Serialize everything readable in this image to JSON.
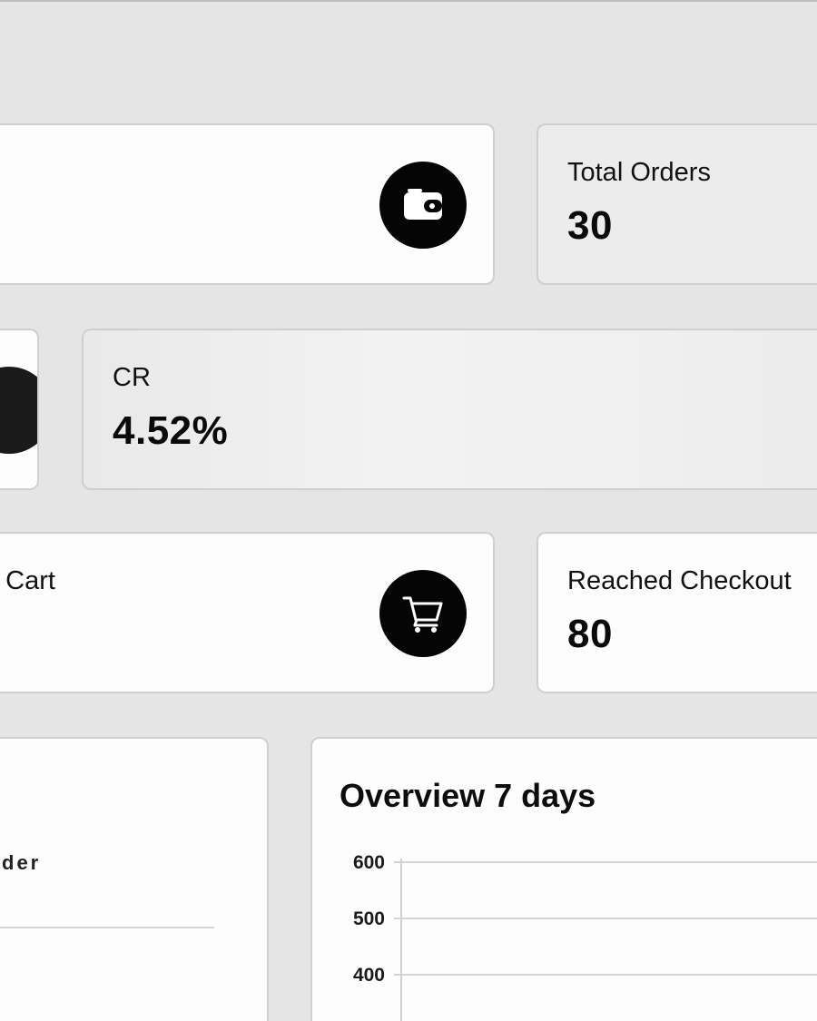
{
  "cards": {
    "revenue": {
      "icon": "wallet-icon"
    },
    "total_orders": {
      "label": "Total Orders",
      "value": "30"
    },
    "cr": {
      "label": "CR",
      "value": "4.52%"
    },
    "added_to_cart": {
      "label": "o Cart",
      "icon": "cart-icon"
    },
    "reached_checkout": {
      "label": "Reached Checkout",
      "value": "80"
    }
  },
  "left_panel": {
    "label_fragment": "der"
  },
  "overview": {
    "title": "Overview 7 days",
    "chart_data": {
      "type": "line",
      "title": "Overview 7 days",
      "y_ticks": [
        "600",
        "500",
        "400"
      ]
    }
  }
}
